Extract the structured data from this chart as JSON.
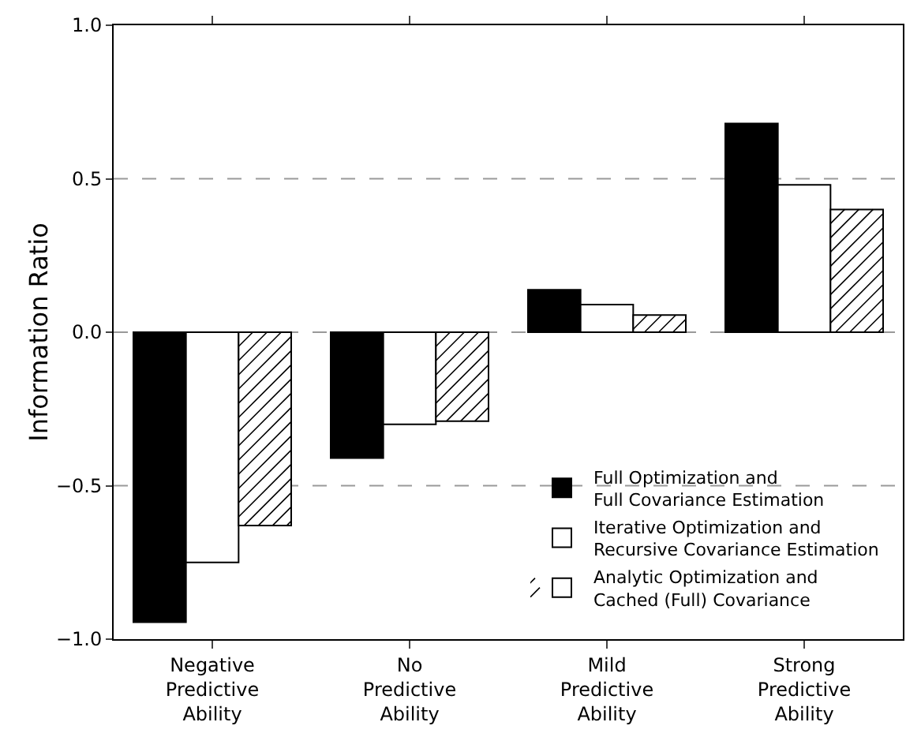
{
  "chart_data": {
    "type": "bar",
    "ylabel": "Information Ratio",
    "categories": [
      "Negative\nPredictive\nAbility",
      "No\nPredictive\nAbility",
      "Mild\nPredictive\nAbility",
      "Strong\nPredictive\nAbility"
    ],
    "series": [
      {
        "name": "Full Optimization and\nFull Covariance Estimation",
        "color": "#000000",
        "values": [
          -0.945,
          -0.41,
          0.138,
          0.68
        ]
      },
      {
        "name": "Iterative Optimization and\nRecursive Covariance Estimation",
        "color": "#ffffff",
        "values": [
          -0.75,
          -0.3,
          0.09,
          0.48
        ]
      },
      {
        "name": "Analytic Optimization and\nCached (Full) Covariance",
        "color": "#ffffff",
        "values": [
          -0.63,
          -0.29,
          0.056,
          0.4
        ]
      }
    ],
    "ylim": [
      -1,
      1
    ],
    "yticks": [
      {
        "value": -1,
        "label": "−1.0"
      },
      {
        "value": -0.5,
        "label": "−0.5"
      },
      {
        "value": 0,
        "label": "0.0"
      },
      {
        "value": 0.5,
        "label": "0.5"
      },
      {
        "value": 1,
        "label": "1.0"
      }
    ],
    "grid": "y",
    "line_style": "dashed",
    "legend": "bottom right"
  }
}
